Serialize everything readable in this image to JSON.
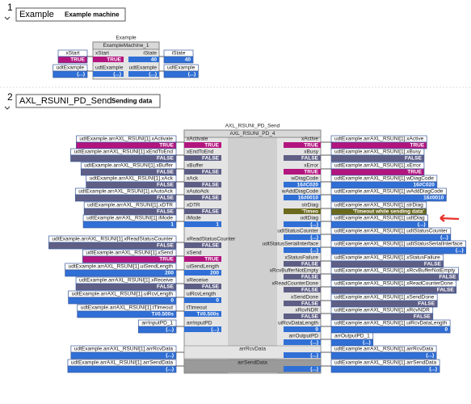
{
  "networks": [
    {
      "number": "1",
      "title": "Example",
      "comment": "Example machine",
      "block": {
        "type_name": "Example",
        "instance": "ExampleMachine_1",
        "inputs": [
          {
            "variable": "xStart",
            "pin": "xStart",
            "value": "TRUE"
          },
          {
            "variable": "udtExample",
            "pin": "udtExample",
            "value": "(...)"
          }
        ],
        "outputs": [
          {
            "pin": "iState",
            "value": "40",
            "variable": "iState"
          },
          {
            "pin": "udtExample",
            "value": "(...)",
            "variable": "udtExample"
          }
        ],
        "inouts": []
      }
    },
    {
      "number": "2",
      "title": "AXL_RSUNI_PD_Send",
      "comment": "Sending data",
      "block": {
        "type_name": "AXL_RSUNI_PD_Send",
        "instance": "AXL_RSUNI_PD_4",
        "inputs": [
          {
            "variable": "udtExample.arrAXL_RSUNI[1].xActivate",
            "pin": "xActivate",
            "value": "TRUE"
          },
          {
            "variable": "udtExample.arrAXL_RSUNI[1].xEndToEnd",
            "pin": "xEndToEnd",
            "value": "FALSE"
          },
          {
            "variable": "udtExample.arrAXL_RSUNI[1].xBuffer",
            "pin": "xBuffer",
            "value": "FALSE"
          },
          {
            "variable": "udtExample.arrAXL_RSUNI[1].xAck",
            "pin": "xAck",
            "value": "FALSE"
          },
          {
            "variable": "udtExample.arrAXL_RSUNI[1].xAutoAck",
            "pin": "xAutoAck",
            "value": "FALSE"
          },
          {
            "variable": "udtExample.arrAXL_RSUNI[1].xDTR",
            "pin": "xDTR",
            "value": "FALSE"
          },
          {
            "variable": "udtExample.arrAXL_RSUNI[1].iMode",
            "pin": "iMode",
            "value": "1"
          },
          {
            "variable": "udtExample.arrAXL_RSUNI[1].xReadStatusCounter",
            "pin": "xReadStatusCounter",
            "value": "FALSE"
          },
          {
            "variable": "udtExample.arrAXL_RSUNI[1].xSend",
            "pin": "xSend",
            "value": "TRUE"
          },
          {
            "variable": "udtExample.arrAXL_RSUNI[1].uiSendLength",
            "pin": "uiSendLength",
            "value": "200"
          },
          {
            "variable": "udtExample.arrAXL_RSUNI[1].xReceive",
            "pin": "xReceive",
            "value": "FALSE"
          },
          {
            "variable": "udtExample.arrAXL_RSUNI[1].uiRcvLength",
            "pin": "uiRcvLength",
            "value": "0"
          },
          {
            "variable": "udtExample.arrAXL_RSUNI[1].tTimeout",
            "pin": "tTimeout",
            "value": "T#0.500s"
          },
          {
            "variable": "arrInputPD_1",
            "pin": "arrInputPD",
            "value": "(...)"
          }
        ],
        "outputs": [
          {
            "pin": "xActive",
            "value": "TRUE",
            "variable": "udtExample.arrAXL_RSUNI[1].xActive"
          },
          {
            "pin": "xBusy",
            "value": "FALSE",
            "variable": "udtExample.arrAXL_RSUNI[1].xBusy"
          },
          {
            "pin": "xError",
            "value": "TRUE",
            "variable": "udtExample.arrAXL_RSUNI[1].xError"
          },
          {
            "pin": "wDiagCode",
            "value": "16#C020",
            "variable": "udtExample.arrAXL_RSUNI[1].wDiagCode"
          },
          {
            "pin": "wAddDiagCode",
            "value": "16#0010",
            "variable": "udtExample.arrAXL_RSUNI[1].wAddDiagCode"
          },
          {
            "pin": "strDiag",
            "value": "'Timeo",
            "variable": "udtExample.arrAXL_RSUNI[1].strDiag",
            "variable_value": "'Timeout while sending data'"
          },
          {
            "pin": "udtDiag",
            "value": "(...)",
            "variable": "udtExample.arrAXL_RSUNI[1].udtDiag"
          },
          {
            "pin": "udtStatusCounter",
            "value": "(...)",
            "variable": "udtExample.arrAXL_RSUNI[1].udtStatusCounter"
          },
          {
            "pin": "udtStatusSerialInterface",
            "value": "(...)",
            "variable": "udtExample.arrAXL_RSUNI[1].udtStatusSerialInterface"
          },
          {
            "pin": "xStatusFailure",
            "value": "FALSE",
            "variable": "udtExample.arrAXL_RSUNI[1].xStatusFailure"
          },
          {
            "pin": "xRcvBufferNotEmpty",
            "value": "FALSE",
            "variable": "udtExample.arrAXL_RSUNI[1].xRcvBufferNotEmpty"
          },
          {
            "pin": "xReadCounterDone",
            "value": "FALSE",
            "variable": "udtExample.arrAXL_RSUNI[1].xReadCounterDone"
          },
          {
            "pin": "xSendDone",
            "value": "FALSE",
            "variable": "udtExample.arrAXL_RSUNI[1].xSendDone"
          },
          {
            "pin": "xRcvNDR",
            "value": "FALSE",
            "variable": "udtExample.arrAXL_RSUNI[1].xRcvNDR"
          },
          {
            "pin": "uiRcvDataLength",
            "value": "0",
            "variable": "udtExample.arrAXL_RSUNI[1].uiRcvDataLength"
          },
          {
            "pin": "arrOutputPD",
            "value": "(...)",
            "variable": "arrOutputPD_1"
          }
        ],
        "inouts": [
          {
            "variable": "udtExample.arrAXL_RSUNI[1].arrRcvData",
            "pin": "arrRcvData",
            "value": "(...)"
          },
          {
            "variable": "udtExample.arrAXL_RSUNI[1].arrSendData",
            "pin": "arrSendData",
            "value": "(...)"
          }
        ]
      }
    }
  ]
}
